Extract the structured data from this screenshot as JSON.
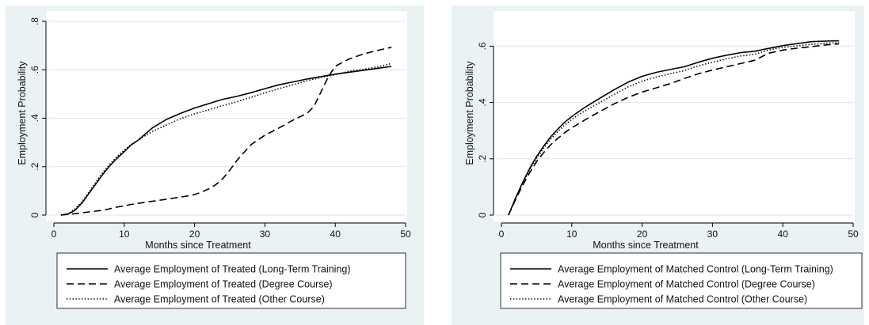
{
  "chart_data": [
    {
      "type": "line",
      "xlabel": "Months since Treatment",
      "ylabel": "Employment Probability",
      "xlim": [
        0,
        50
      ],
      "ylim": [
        0,
        0.8
      ],
      "xticks": [
        0,
        10,
        20,
        30,
        40,
        50
      ],
      "yticks": [
        0,
        0.2,
        0.4,
        0.6,
        0.8
      ],
      "xtick_labels": [
        "0",
        "10",
        "20",
        "30",
        "40",
        "50"
      ],
      "ytick_labels": [
        "0",
        ".2",
        ".4",
        ".6",
        ".8"
      ],
      "grid": "horizontal",
      "legend_position": "bottom",
      "series": [
        {
          "name": "Average Employment of Treated (Long-Term Training)",
          "style": "solid",
          "x": [
            1,
            2,
            3,
            4,
            5,
            6,
            7,
            8,
            9,
            10,
            11,
            12,
            13,
            14,
            16,
            18,
            20,
            22,
            24,
            26,
            28,
            30,
            32,
            34,
            36,
            38,
            40,
            42,
            44,
            46,
            48
          ],
          "y": [
            0.0,
            0.004,
            0.02,
            0.05,
            0.09,
            0.13,
            0.17,
            0.205,
            0.235,
            0.262,
            0.29,
            0.31,
            0.335,
            0.36,
            0.395,
            0.42,
            0.442,
            0.46,
            0.478,
            0.49,
            0.505,
            0.522,
            0.538,
            0.55,
            0.562,
            0.572,
            0.582,
            0.59,
            0.598,
            0.606,
            0.614
          ]
        },
        {
          "name": "Average Employment of Treated (Degree Course)",
          "style": "dashed",
          "x": [
            1,
            3,
            5,
            7,
            9,
            11,
            13,
            15,
            17,
            19,
            20,
            21,
            22,
            23,
            24,
            25,
            26,
            27,
            28,
            30,
            32,
            34,
            36,
            37,
            38,
            39,
            40,
            42,
            44,
            46,
            48
          ],
          "y": [
            0.0,
            0.006,
            0.013,
            0.02,
            0.033,
            0.044,
            0.053,
            0.061,
            0.07,
            0.079,
            0.085,
            0.095,
            0.108,
            0.125,
            0.15,
            0.185,
            0.225,
            0.258,
            0.29,
            0.33,
            0.36,
            0.392,
            0.42,
            0.45,
            0.51,
            0.57,
            0.615,
            0.645,
            0.665,
            0.68,
            0.693
          ]
        },
        {
          "name": "Average Employment of Treated (Other Course)",
          "style": "dotted",
          "x": [
            1,
            2,
            3,
            4,
            5,
            6,
            7,
            8,
            9,
            10,
            11,
            12,
            13,
            14,
            16,
            18,
            20,
            22,
            24,
            26,
            28,
            30,
            32,
            34,
            36,
            38,
            40,
            42,
            44,
            46,
            48
          ],
          "y": [
            0.0,
            0.006,
            0.025,
            0.055,
            0.095,
            0.138,
            0.178,
            0.212,
            0.243,
            0.268,
            0.292,
            0.31,
            0.328,
            0.345,
            0.372,
            0.398,
            0.418,
            0.435,
            0.452,
            0.468,
            0.486,
            0.505,
            0.522,
            0.538,
            0.555,
            0.568,
            0.58,
            0.594,
            0.602,
            0.612,
            0.626
          ]
        }
      ]
    },
    {
      "type": "line",
      "xlabel": "Months since Treatment",
      "ylabel": "Employment Probability",
      "xlim": [
        0,
        50
      ],
      "ylim": [
        0,
        0.66
      ],
      "xticks": [
        0,
        10,
        20,
        30,
        40,
        50
      ],
      "yticks": [
        0,
        0.2,
        0.4,
        0.6
      ],
      "xtick_labels": [
        "0",
        "10",
        "20",
        "30",
        "40",
        "50"
      ],
      "ytick_labels": [
        "0",
        ".2",
        ".4",
        ".6"
      ],
      "grid": "horizontal",
      "legend_position": "bottom",
      "series": [
        {
          "name": "Average Employment of Matched Control (Long-Term Training)",
          "style": "solid",
          "x": [
            1,
            2,
            3,
            4,
            5,
            6,
            7,
            8,
            9,
            10,
            11,
            12,
            14,
            16,
            18,
            20,
            22,
            24,
            26,
            28,
            30,
            32,
            34,
            36,
            38,
            40,
            42,
            44,
            46,
            48
          ],
          "y": [
            0.0,
            0.06,
            0.115,
            0.165,
            0.208,
            0.245,
            0.278,
            0.305,
            0.33,
            0.35,
            0.368,
            0.385,
            0.415,
            0.445,
            0.472,
            0.493,
            0.507,
            0.517,
            0.527,
            0.543,
            0.557,
            0.568,
            0.577,
            0.582,
            0.592,
            0.602,
            0.609,
            0.616,
            0.618,
            0.619
          ]
        },
        {
          "name": "Average Employment of Matched Control (Degree Course)",
          "style": "dashed",
          "x": [
            1,
            2,
            3,
            4,
            5,
            6,
            7,
            8,
            9,
            10,
            11,
            12,
            14,
            16,
            18,
            20,
            22,
            24,
            26,
            28,
            30,
            32,
            34,
            36,
            38,
            40,
            42,
            44,
            46,
            48
          ],
          "y": [
            0.0,
            0.055,
            0.105,
            0.15,
            0.19,
            0.222,
            0.25,
            0.272,
            0.293,
            0.31,
            0.325,
            0.34,
            0.368,
            0.395,
            0.418,
            0.437,
            0.452,
            0.467,
            0.485,
            0.502,
            0.515,
            0.527,
            0.538,
            0.55,
            0.575,
            0.586,
            0.593,
            0.598,
            0.604,
            0.608
          ]
        },
        {
          "name": "Average Employment of Matched Control (Other Course)",
          "style": "dotted",
          "x": [
            1,
            2,
            3,
            4,
            5,
            6,
            7,
            8,
            9,
            10,
            11,
            12,
            14,
            16,
            18,
            20,
            22,
            24,
            26,
            28,
            30,
            32,
            34,
            36,
            38,
            40,
            42,
            44,
            46,
            48
          ],
          "y": [
            0.0,
            0.058,
            0.112,
            0.16,
            0.202,
            0.238,
            0.27,
            0.296,
            0.32,
            0.34,
            0.357,
            0.372,
            0.4,
            0.428,
            0.455,
            0.476,
            0.49,
            0.502,
            0.513,
            0.53,
            0.543,
            0.555,
            0.565,
            0.571,
            0.586,
            0.596,
            0.601,
            0.606,
            0.61,
            0.613
          ]
        }
      ]
    }
  ]
}
